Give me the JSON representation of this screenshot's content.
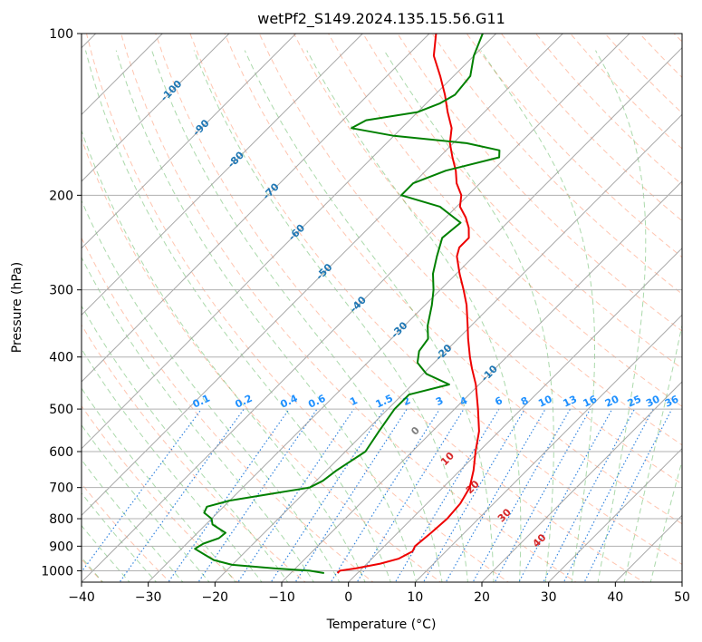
{
  "chart_data": {
    "type": "line",
    "title": "wetPf2_S149.2024.135.15.56.G11",
    "xlabel": "Temperature (°C)",
    "ylabel": "Pressure (hPa)",
    "xlim": [
      -40,
      50
    ],
    "ylim": [
      1050,
      100
    ],
    "y_scale": "log",
    "skew": true,
    "x_ticks": [
      "−40",
      "−30",
      "−20",
      "−10",
      "0",
      "10",
      "20",
      "30",
      "40",
      "50"
    ],
    "y_ticks": [
      "100",
      "200",
      "300",
      "400",
      "500",
      "600",
      "700",
      "800",
      "900",
      "1000"
    ],
    "grid": true,
    "colors": {
      "temperature": "#ee0000",
      "dewpoint": "#008000",
      "dry_adiabat": "#ff7f50",
      "moist_adiabat": "#2ca02c",
      "mixing_ratio": "#1e78dc",
      "isotherm": "#999999"
    },
    "series": [
      {
        "key": "temperature",
        "points": [
          [
            1010,
            -3.0
          ],
          [
            1000,
            -3.0
          ],
          [
            990,
            -1.0
          ],
          [
            970,
            2.0
          ],
          [
            950,
            4.0
          ],
          [
            920,
            5.0
          ],
          [
            900,
            4.6
          ],
          [
            850,
            5.0
          ],
          [
            800,
            5.3
          ],
          [
            750,
            5.0
          ],
          [
            700,
            4.0
          ],
          [
            650,
            2.0
          ],
          [
            600,
            -0.5
          ],
          [
            550,
            -3.0
          ],
          [
            500,
            -6.5
          ],
          [
            450,
            -10.5
          ],
          [
            420,
            -13.5
          ],
          [
            400,
            -15.5
          ],
          [
            370,
            -18.5
          ],
          [
            350,
            -20.5
          ],
          [
            320,
            -23.8
          ],
          [
            300,
            -26.5
          ],
          [
            280,
            -29.5
          ],
          [
            260,
            -32.5
          ],
          [
            250,
            -33.5
          ],
          [
            240,
            -33.5
          ],
          [
            230,
            -35.0
          ],
          [
            220,
            -37.0
          ],
          [
            210,
            -39.5
          ],
          [
            200,
            -41.0
          ],
          [
            190,
            -43.5
          ],
          [
            180,
            -45.5
          ],
          [
            170,
            -48.0
          ],
          [
            160,
            -50.5
          ],
          [
            150,
            -52.5
          ],
          [
            140,
            -55.5
          ],
          [
            130,
            -58.5
          ],
          [
            120,
            -62.0
          ],
          [
            110,
            -66.0
          ],
          [
            100,
            -69.0
          ]
        ]
      },
      {
        "key": "dewpoint",
        "points": [
          [
            1010,
            -5.0
          ],
          [
            1000,
            -7.5
          ],
          [
            990,
            -13.0
          ],
          [
            975,
            -20.0
          ],
          [
            955,
            -23.5
          ],
          [
            930,
            -26.0
          ],
          [
            910,
            -28.0
          ],
          [
            890,
            -27.5
          ],
          [
            870,
            -26.0
          ],
          [
            850,
            -25.8
          ],
          [
            820,
            -29.0
          ],
          [
            800,
            -30.0
          ],
          [
            780,
            -32.0
          ],
          [
            760,
            -32.5
          ],
          [
            740,
            -30.0
          ],
          [
            720,
            -25.0
          ],
          [
            700,
            -20.0
          ],
          [
            680,
            -19.0
          ],
          [
            650,
            -18.5
          ],
          [
            600,
            -17.0
          ],
          [
            550,
            -18.0
          ],
          [
            500,
            -19.0
          ],
          [
            470,
            -19.0
          ],
          [
            450,
            -14.5
          ],
          [
            430,
            -19.5
          ],
          [
            410,
            -22.5
          ],
          [
            390,
            -24.0
          ],
          [
            370,
            -24.5
          ],
          [
            350,
            -26.5
          ],
          [
            320,
            -29.0
          ],
          [
            300,
            -31.0
          ],
          [
            280,
            -33.5
          ],
          [
            260,
            -35.5
          ],
          [
            240,
            -37.5
          ],
          [
            225,
            -37.0
          ],
          [
            210,
            -42.5
          ],
          [
            200,
            -50.0
          ],
          [
            190,
            -50.0
          ],
          [
            180,
            -47.0
          ],
          [
            170,
            -41.0
          ],
          [
            165,
            -42.0
          ],
          [
            160,
            -48.0
          ],
          [
            155,
            -60.0
          ],
          [
            150,
            -67.5
          ],
          [
            145,
            -66.5
          ],
          [
            140,
            -60.0
          ],
          [
            135,
            -58.0
          ],
          [
            130,
            -57.0
          ],
          [
            120,
            -57.5
          ],
          [
            110,
            -60.0
          ],
          [
            100,
            -62.0
          ]
        ]
      }
    ],
    "dry_adiabat_labels": [
      "-100",
      "-90",
      "-80",
      "-70",
      "-60",
      "-50",
      "-40",
      "-30",
      "-20",
      "-10"
    ],
    "mixing_ratio_labels": [
      "0.1",
      "0.2",
      "0.4",
      "0.6",
      "1",
      "1.5",
      "2",
      "3",
      "4",
      "6",
      "8",
      "10",
      "13",
      "16",
      "20",
      "25",
      "30",
      "36"
    ],
    "moist_adiabat_labels": [
      "0",
      "10",
      "20",
      "30",
      "40"
    ]
  }
}
